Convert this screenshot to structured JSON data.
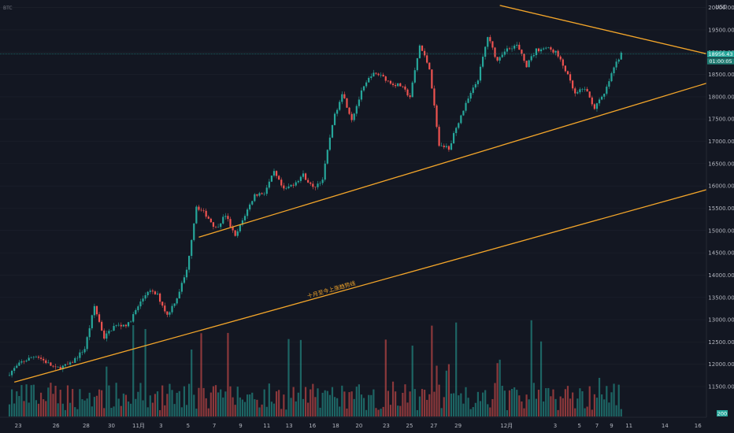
{
  "header": {
    "symbol": "BTC"
  },
  "colors": {
    "background": "#131722",
    "up": "#26a69a",
    "down": "#ef5350",
    "trendline": "#f4a62a",
    "axis_text": "#b2b5be",
    "grid": "#1e222d",
    "price_line": "#26a69a"
  },
  "chart_data": {
    "type": "candlestick",
    "price_axis": {
      "unit": "USD",
      "ticks": [
        "20000.00",
        "19500.00",
        "19000.00",
        "18500.00",
        "18000.00",
        "17500.00",
        "17000.00",
        "16500.00",
        "16000.00",
        "15500.00",
        "15000.00",
        "14500.00",
        "14000.00",
        "13500.00",
        "13000.00",
        "12500.00",
        "12000.00",
        "11500.00"
      ],
      "range": [
        11200,
        20100
      ]
    },
    "current_price": {
      "value": 18956.43,
      "label": "18956.43",
      "countdown": "01:00:05"
    },
    "volume_tag": {
      "label": "200"
    },
    "time_axis": {
      "labels": [
        "23",
        "26",
        "28",
        "30",
        "11月",
        "3",
        "5",
        "7",
        "9",
        "11",
        "13",
        "16",
        "18",
        "20",
        "23",
        "25",
        "27",
        "29",
        "12月",
        "3",
        "5",
        "7",
        "9",
        "11",
        "14",
        "16"
      ]
    },
    "price_path": [
      {
        "day": 0,
        "price": 11750
      },
      {
        "day": 1.5,
        "price": 12050
      },
      {
        "day": 3,
        "price": 12200
      },
      {
        "day": 5,
        "price": 11900
      },
      {
        "day": 6.5,
        "price": 12000
      },
      {
        "day": 8,
        "price": 12350
      },
      {
        "day": 9,
        "price": 13300
      },
      {
        "day": 10,
        "price": 12600
      },
      {
        "day": 11,
        "price": 12850
      },
      {
        "day": 12.5,
        "price": 12900
      },
      {
        "day": 13.5,
        "price": 13300
      },
      {
        "day": 14.5,
        "price": 13650
      },
      {
        "day": 15.5,
        "price": 13550
      },
      {
        "day": 16.5,
        "price": 13100
      },
      {
        "day": 17.5,
        "price": 13500
      },
      {
        "day": 18.5,
        "price": 14100
      },
      {
        "day": 19.5,
        "price": 15550
      },
      {
        "day": 20.5,
        "price": 15350
      },
      {
        "day": 21.5,
        "price": 15050
      },
      {
        "day": 22.5,
        "price": 15350
      },
      {
        "day": 23.5,
        "price": 14850
      },
      {
        "day": 24.5,
        "price": 15350
      },
      {
        "day": 25.5,
        "price": 15800
      },
      {
        "day": 26.5,
        "price": 15850
      },
      {
        "day": 27.5,
        "price": 16300
      },
      {
        "day": 28.5,
        "price": 15900
      },
      {
        "day": 29.5,
        "price": 16050
      },
      {
        "day": 30.5,
        "price": 16250
      },
      {
        "day": 31.5,
        "price": 15950
      },
      {
        "day": 32.5,
        "price": 16150
      },
      {
        "day": 33.5,
        "price": 17400
      },
      {
        "day": 34.5,
        "price": 18100
      },
      {
        "day": 35.5,
        "price": 17500
      },
      {
        "day": 36.5,
        "price": 18100
      },
      {
        "day": 37.5,
        "price": 18500
      },
      {
        "day": 38.5,
        "price": 18500
      },
      {
        "day": 39.5,
        "price": 18300
      },
      {
        "day": 40.5,
        "price": 18250
      },
      {
        "day": 41.5,
        "price": 18000
      },
      {
        "day": 42.5,
        "price": 19150
      },
      {
        "day": 43.5,
        "price": 18650
      },
      {
        "day": 44.5,
        "price": 16900
      },
      {
        "day": 45.5,
        "price": 16850
      },
      {
        "day": 46.5,
        "price": 17450
      },
      {
        "day": 47.5,
        "price": 17950
      },
      {
        "day": 48.5,
        "price": 18400
      },
      {
        "day": 49.5,
        "price": 19350
      },
      {
        "day": 50.5,
        "price": 18800
      },
      {
        "day": 51.5,
        "price": 19100
      },
      {
        "day": 52.5,
        "price": 19150
      },
      {
        "day": 53.5,
        "price": 18700
      },
      {
        "day": 54.5,
        "price": 19050
      },
      {
        "day": 55.5,
        "price": 19100
      },
      {
        "day": 56.5,
        "price": 19000
      },
      {
        "day": 57.5,
        "price": 18600
      },
      {
        "day": 58.5,
        "price": 18050
      },
      {
        "day": 59.5,
        "price": 18200
      },
      {
        "day": 60.5,
        "price": 17750
      },
      {
        "day": 61.5,
        "price": 18050
      },
      {
        "day": 62.5,
        "price": 18650
      },
      {
        "day": 63.2,
        "price": 18956
      }
    ],
    "trendlines": [
      {
        "name": "upper-support",
        "from": {
          "day": 19.5,
          "price": 14850
        },
        "to": {
          "day": 74,
          "price": 18450
        }
      },
      {
        "name": "lower-support",
        "from": {
          "day": 0.5,
          "price": 11600
        },
        "to": {
          "day": 74,
          "price": 16050
        },
        "label": "十月至今上涨趋势线"
      },
      {
        "name": "descending-resistance",
        "from": {
          "day": 50.5,
          "price": 20050
        },
        "to": {
          "day": 74,
          "price": 18850
        }
      }
    ]
  }
}
